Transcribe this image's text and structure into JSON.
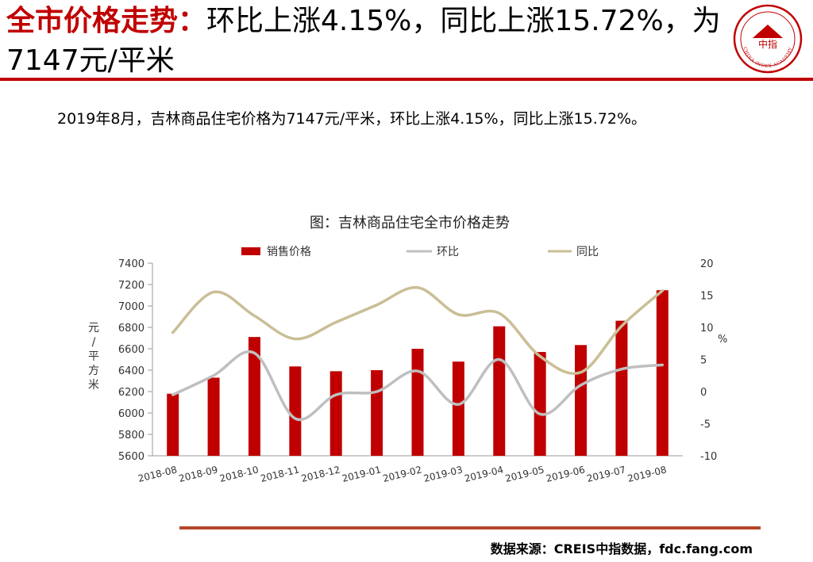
{
  "header": {
    "title_highlight": "全市价格走势：",
    "title_rest": "环比上涨4.15%，同比上涨15.72%，为7147元/平米"
  },
  "logo": {
    "name": "China Index Academy",
    "arc_text": "CHINA INDEX ACADEMY",
    "center_text": "中指",
    "color": "#c00000"
  },
  "summary": "2019年8月，吉林商品住宅价格为7147元/平米，环比上涨4.15%，同比上涨15.72%。",
  "chart_data": {
    "type": "bar",
    "title": "图：吉林商品住宅全市价格走势",
    "categories": [
      "2018-08",
      "2018-09",
      "2018-10",
      "2018-11",
      "2018-12",
      "2019-01",
      "2019-02",
      "2019-03",
      "2019-04",
      "2019-05",
      "2019-06",
      "2019-07",
      "2019-08"
    ],
    "series": [
      {
        "name": "销售价格",
        "type": "bar",
        "axis": "left",
        "color": "#c00000",
        "values": [
          6180,
          6330,
          6710,
          6435,
          6390,
          6400,
          6600,
          6480,
          6810,
          6570,
          6635,
          6862,
          7147
        ]
      },
      {
        "name": "环比",
        "type": "line",
        "axis": "right",
        "color": "#bfbfbf",
        "values": [
          -0.5,
          2.5,
          6.0,
          -4.2,
          -0.5,
          0.0,
          3.2,
          -2.0,
          5.0,
          -3.5,
          1.0,
          3.5,
          4.15
        ]
      },
      {
        "name": "同比",
        "type": "line",
        "axis": "right",
        "color": "#c9be96",
        "values": [
          9.2,
          15.5,
          11.8,
          8.2,
          10.8,
          13.5,
          16.2,
          12.0,
          12.2,
          5.5,
          3.0,
          10.2,
          15.72
        ]
      }
    ],
    "ylabel": "元/平方米",
    "y2label": "%",
    "ylim": [
      5600,
      7400
    ],
    "yticks": [
      5600,
      5800,
      6000,
      6200,
      6400,
      6600,
      6800,
      7000,
      7200,
      7400
    ],
    "y2lim": [
      -10,
      20
    ],
    "y2ticks": [
      -10,
      -5,
      0,
      5,
      10,
      15,
      20
    ],
    "legend_position": "top",
    "grid": false
  },
  "footer": {
    "source": "数据来源：CREIS中指数据，fdc.fang.com"
  }
}
